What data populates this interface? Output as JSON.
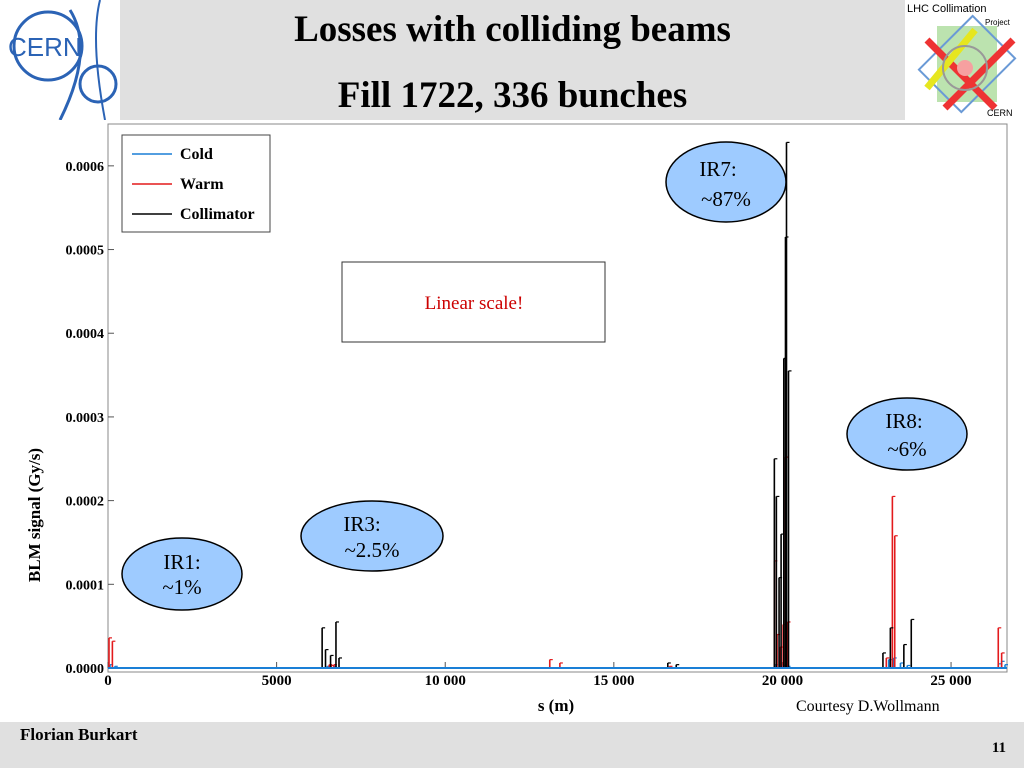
{
  "header": {
    "title_line1": "Losses with colliding beams",
    "title_line2": "Fill 1722, 336 bunches",
    "cern_logo_text": "CERN",
    "lhc_logo_text_top": "LHC Collimation",
    "lhc_logo_text_mid": "Project",
    "lhc_logo_text_bottom": "CERN"
  },
  "footer": {
    "author": "Florian Burkart",
    "page_number": "11",
    "courtesy": "Courtesy D.Wollmann"
  },
  "colors": {
    "cold": "#1a7fd6",
    "warm": "#e31a1c",
    "collimator": "#000000",
    "bubble_fill": "#9ecbff",
    "note_text": "#cc0000",
    "band": "#e0e0e0"
  },
  "annotations": {
    "note": "Linear scale!",
    "bubbles": [
      {
        "line1": "IR1:",
        "line2": "~1%"
      },
      {
        "line1": "IR3:",
        "line2": "~2.5%"
      },
      {
        "line1": "IR7:",
        "line2": "~87%"
      },
      {
        "line1": "IR8:",
        "line2": "~6%"
      }
    ]
  },
  "chart_data": {
    "type": "line",
    "title": "",
    "xlabel": "s (m)",
    "ylabel": "BLM signal (Gy/s)",
    "xlim": [
      0,
      26659
    ],
    "ylim": [
      0,
      0.00065
    ],
    "x_ticks": [
      0,
      5000,
      10000,
      15000,
      20000,
      25000
    ],
    "x_tick_labels": [
      "0",
      "5000",
      "10 000",
      "15 000",
      "20 000",
      "25 000"
    ],
    "y_ticks": [
      0,
      0.0001,
      0.0002,
      0.0003,
      0.0004,
      0.0005,
      0.0006
    ],
    "y_tick_labels": [
      "0.0000",
      "0.0001",
      "0.0002",
      "0.0003",
      "0.0004",
      "0.0005",
      "0.0006"
    ],
    "grid": false,
    "legend_position": "top-left",
    "series": [
      {
        "name": "Cold",
        "color": "#1a7fd6",
        "x": [
          60,
          200,
          6500,
          6700,
          19780,
          20000,
          20150,
          23150,
          23300,
          23500,
          23700,
          26400,
          26500,
          26600
        ],
        "y": [
          4e-06,
          2e-06,
          2e-06,
          2e-06,
          4e-06,
          3e-06,
          2e-06,
          1e-05,
          1.2e-05,
          6e-06,
          3e-06,
          5e-06,
          8e-06,
          4e-06
        ]
      },
      {
        "name": "Warm",
        "color": "#e31a1c",
        "x": [
          30,
          130,
          6560,
          6620,
          6700,
          13100,
          13400,
          16650,
          19760,
          19840,
          19930,
          20020,
          20090,
          20150,
          23080,
          23260,
          23330,
          26400,
          26500
        ],
        "y": [
          3.6e-05,
          3.2e-05,
          4e-06,
          3e-06,
          4e-06,
          1e-05,
          6e-06,
          2e-06,
          0.000128,
          4e-05,
          2.5e-05,
          5.2e-05,
          0.000252,
          5.5e-05,
          1.2e-05,
          0.000205,
          0.000158,
          4.8e-05,
          1.8e-05
        ]
      },
      {
        "name": "Collimator",
        "color": "#000000",
        "x": [
          6350,
          6450,
          6600,
          6760,
          6850,
          16600,
          16850,
          19760,
          19820,
          19900,
          19960,
          20040,
          20090,
          20120,
          20180,
          22980,
          23200,
          23600,
          23820
        ],
        "y": [
          4.8e-05,
          2.2e-05,
          1.5e-05,
          5.5e-05,
          1.2e-05,
          6e-06,
          4e-06,
          0.00025,
          0.000205,
          0.000108,
          0.00016,
          0.00037,
          0.000515,
          0.000628,
          0.000355,
          1.8e-05,
          4.8e-05,
          2.8e-05,
          5.8e-05
        ]
      }
    ]
  }
}
